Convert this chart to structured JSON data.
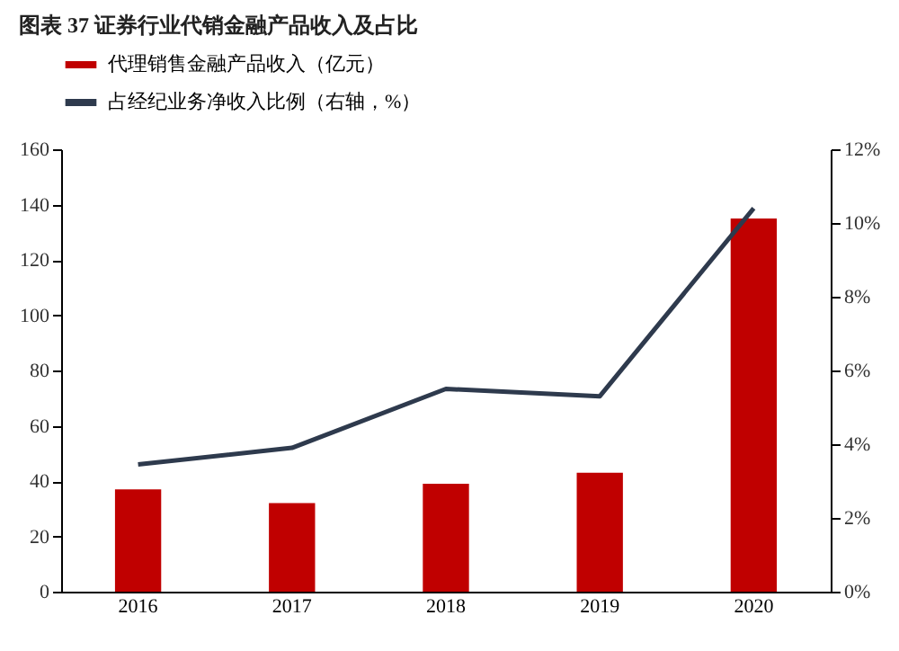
{
  "chart_data": {
    "type": "bar",
    "title": "图表 37  证券行业代销金融产品收入及占比",
    "categories": [
      "2016",
      "2017",
      "2018",
      "2019",
      "2020"
    ],
    "series": [
      {
        "name": "代理销售金融产品收入（亿元）",
        "color": "#c00000",
        "values": [
          37,
          32,
          39,
          43,
          135
        ]
      },
      {
        "name": "占经纪业务净收入比例（右轴，%）",
        "type": "line",
        "axis": "y2",
        "color": "#2e3a4d",
        "values": [
          3.45,
          3.9,
          5.5,
          5.3,
          10.4
        ]
      }
    ],
    "ylim": [
      0,
      160
    ],
    "yticks": [
      0,
      20,
      40,
      60,
      80,
      100,
      120,
      140,
      160
    ],
    "y2lim": [
      0,
      12
    ],
    "y2ticks": [
      {
        "value": 0,
        "label": "0%"
      },
      {
        "value": 2,
        "label": "2%"
      },
      {
        "value": 4,
        "label": "4%"
      },
      {
        "value": 6,
        "label": "6%"
      },
      {
        "value": 8,
        "label": "8%"
      },
      {
        "value": 10,
        "label": "10%"
      },
      {
        "value": 12,
        "label": "12%"
      }
    ],
    "grid": false,
    "legend": "top",
    "marker": "none",
    "line_style": "solid"
  }
}
